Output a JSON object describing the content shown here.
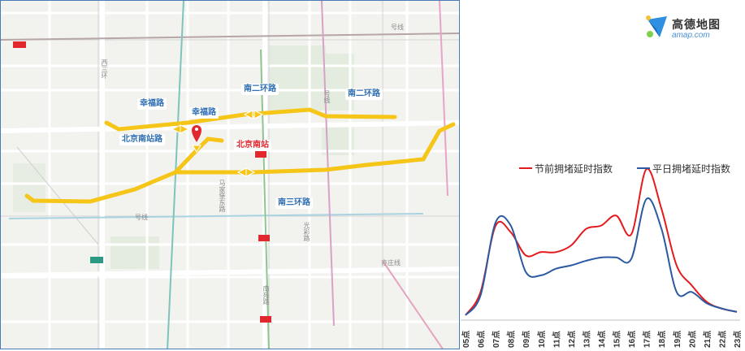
{
  "map": {
    "road_labels": [
      {
        "key": "xingfu_w",
        "text": "幸福路"
      },
      {
        "key": "xingfu_e",
        "text": "幸福路"
      },
      {
        "key": "nanerhuan_w",
        "text": "南二环路"
      },
      {
        "key": "nanerhuan_e",
        "text": "南二环路"
      },
      {
        "key": "bjnanzhan_road",
        "text": "北京南站路"
      },
      {
        "key": "nansanhuan",
        "text": "南三环路"
      }
    ],
    "station_label": "北京南站",
    "small_labels": [
      {
        "key": "xisanhuan",
        "text": "西三环"
      },
      {
        "key": "ma_jia_bao",
        "text": "马家堡东路"
      },
      {
        "key": "guang_cai",
        "text": "光彩路"
      },
      {
        "key": "nanyuan",
        "text": "南苑路"
      },
      {
        "key": "line4",
        "text": "号线"
      },
      {
        "key": "line14",
        "text": "号线"
      },
      {
        "key": "yizhuang",
        "text": "亦庄线"
      },
      {
        "key": "line5",
        "text": "号线"
      }
    ],
    "colors": {
      "route": "#f5c518",
      "marker": "#e0282e",
      "road_label": "#2f6fb3"
    },
    "icons": [
      "location-pin-icon",
      "subway-station-icon",
      "direction-arrows-icon"
    ]
  },
  "logo": {
    "title": "高德地图",
    "subtitle": "amap.com"
  },
  "chart_data": {
    "type": "line",
    "x": [
      "05点",
      "06点",
      "07点",
      "08点",
      "09点",
      "10点",
      "11点",
      "12点",
      "13点",
      "14点",
      "15点",
      "16点",
      "17点",
      "18点",
      "19点",
      "20点",
      "21点",
      "22点",
      "23点"
    ],
    "series": [
      {
        "name": "节前拥堵延时指数",
        "color": "#e41a1c",
        "values": [
          1.0,
          1.35,
          2.35,
          2.25,
          1.9,
          1.95,
          1.95,
          2.05,
          2.3,
          2.35,
          2.5,
          2.22,
          3.2,
          2.6,
          1.75,
          1.45,
          1.2,
          1.1,
          1.05
        ]
      },
      {
        "name": "平日拥堵延时指数",
        "color": "#2c5aa0",
        "values": [
          1.0,
          1.3,
          2.4,
          2.35,
          1.65,
          1.6,
          1.7,
          1.75,
          1.82,
          1.87,
          1.87,
          1.85,
          2.75,
          2.3,
          1.35,
          1.35,
          1.18,
          1.1,
          1.05
        ]
      }
    ],
    "legend": "top-right",
    "grid": false,
    "xlabel": "",
    "ylabel": ""
  }
}
